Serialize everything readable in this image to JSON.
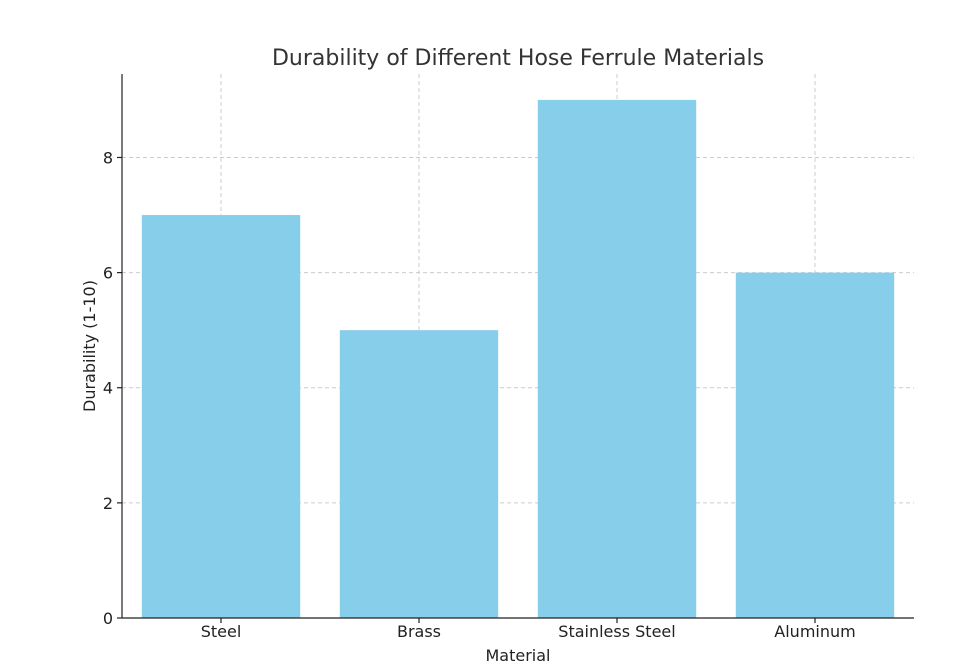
{
  "chart_data": {
    "type": "bar",
    "title": "Durability of Different Hose Ferrule Materials",
    "xlabel": "Material",
    "ylabel": "Durability (1-10)",
    "categories": [
      "Steel",
      "Brass",
      "Stainless Steel",
      "Aluminum"
    ],
    "values": [
      7,
      5,
      9,
      6
    ],
    "ylim": [
      0,
      9.45
    ],
    "yticks": [
      0,
      2,
      4,
      6,
      8
    ],
    "grid": true,
    "bar_color": "#87CEEB"
  }
}
